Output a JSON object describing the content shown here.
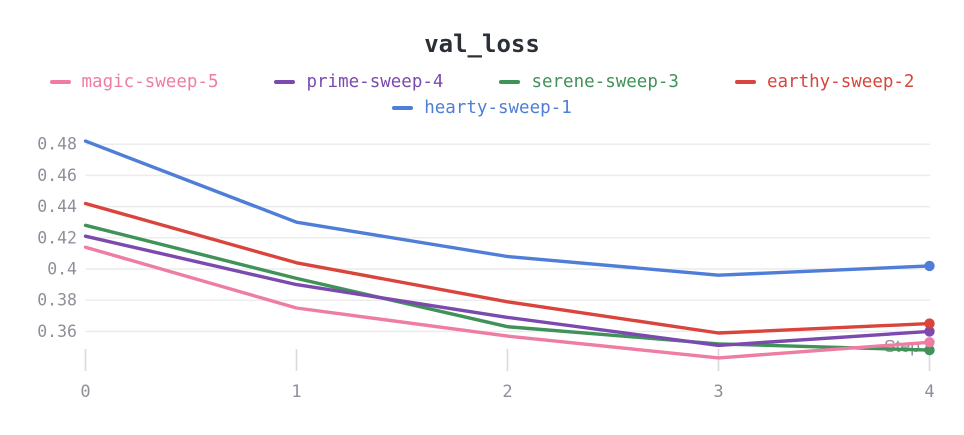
{
  "chart_data": {
    "type": "line",
    "title": "val_loss",
    "xlabel": "Step",
    "x": [
      0,
      1,
      2,
      3,
      4
    ],
    "xtick_labels": [
      "0",
      "1",
      "2",
      "3",
      "4"
    ],
    "ytick_labels": [
      "0.48",
      "0.46",
      "0.44",
      "0.42",
      "0.4",
      "0.38",
      "0.36"
    ],
    "ytick_values": [
      0.48,
      0.46,
      0.44,
      0.42,
      0.4,
      0.38,
      0.36
    ],
    "ylim": [
      0.338,
      0.487
    ],
    "grid": "horizontal-only",
    "legend_position": "top-centered-two-rows",
    "series": [
      {
        "name": "magic-sweep-5",
        "color": "#ee7ca3",
        "values": [
          0.414,
          0.375,
          0.357,
          0.343,
          0.353
        ]
      },
      {
        "name": "prime-sweep-4",
        "color": "#7b4aae",
        "values": [
          0.421,
          0.39,
          0.369,
          0.351,
          0.36
        ]
      },
      {
        "name": "serene-sweep-3",
        "color": "#3f9258",
        "values": [
          0.428,
          0.394,
          0.363,
          0.352,
          0.348
        ]
      },
      {
        "name": "earthy-sweep-2",
        "color": "#d9453c",
        "values": [
          0.442,
          0.404,
          0.379,
          0.359,
          0.365
        ]
      },
      {
        "name": "hearty-sweep-1",
        "color": "#4e7ed8",
        "values": [
          0.482,
          0.43,
          0.408,
          0.396,
          0.402
        ]
      }
    ],
    "legend_rows": [
      [
        0,
        1,
        2,
        3
      ],
      [
        4
      ]
    ],
    "endpoint_markers": true
  },
  "colors": {
    "title": "#2b2f36",
    "gridline": "#ececec",
    "tick_mark": "#d9dadc",
    "axis_label": "#8d909a",
    "step_label": "#8f9094",
    "background": "#ffffff"
  }
}
